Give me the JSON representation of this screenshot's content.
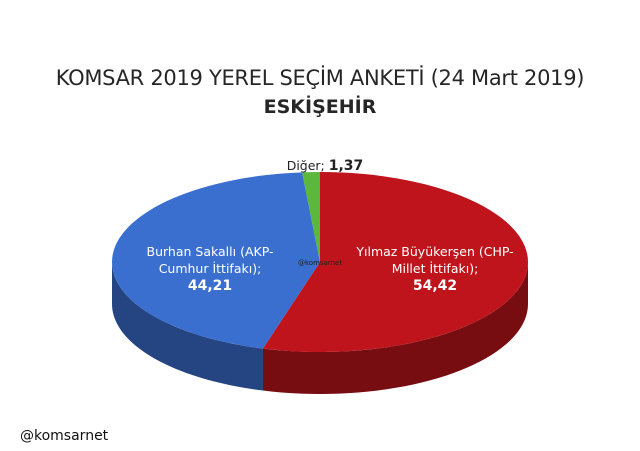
{
  "chart_data": {
    "type": "pie",
    "title": "KOMSAR 2019 YEREL SEÇİM ANKETİ (24 Mart 2019)",
    "subtitle": "ESKİŞEHİR",
    "categories": [
      "Yılmaz Büyükerşen (CHP-Millet İttifakı);",
      "Burhan Sakallı (AKP-Cumhur İttifakı);",
      "Diğer;"
    ],
    "values": [
      54.42,
      44.21,
      1.37
    ],
    "value_labels": [
      "54,42",
      "44,21",
      "1,37"
    ],
    "colors": [
      "#c0141c",
      "#3a6fd0",
      "#5cb83c"
    ],
    "watermark": "@komsarnet",
    "footer": "@komsarnet"
  }
}
